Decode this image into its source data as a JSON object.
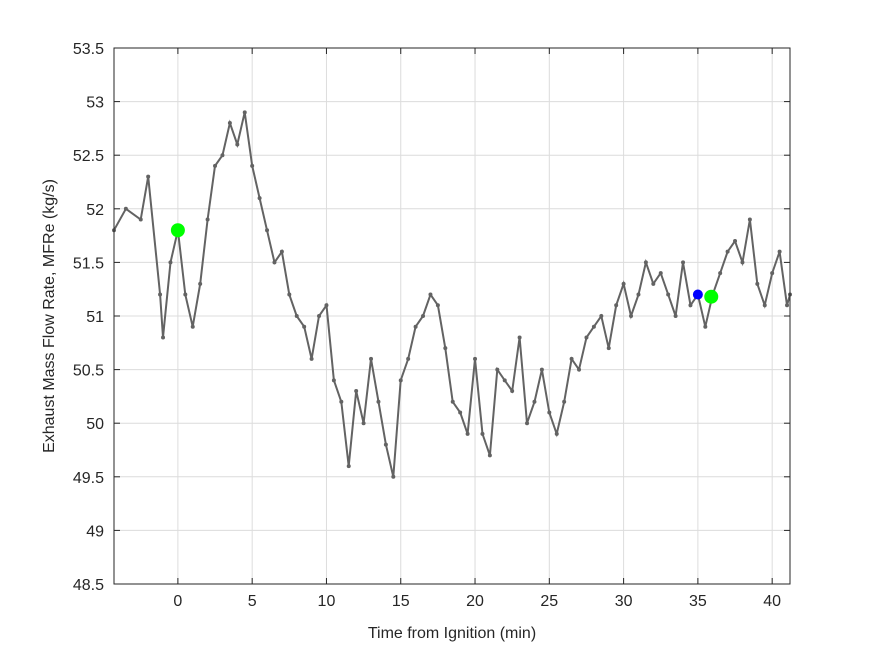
{
  "chart_data": {
    "type": "line",
    "title": "",
    "xlabel": "Time from Ignition (min)",
    "ylabel": "Exhaust Mass Flow Rate, MFRe (kg/s)",
    "xlim": [
      -4.3,
      41.2
    ],
    "ylim": [
      48.5,
      53.5
    ],
    "xticks": [
      0,
      5,
      10,
      15,
      20,
      25,
      30,
      35,
      40
    ],
    "xtick_labels": [
      "0",
      "5",
      "10",
      "15",
      "20",
      "25",
      "30",
      "35",
      "40"
    ],
    "yticks": [
      48.5,
      49,
      49.5,
      50,
      50.5,
      51,
      51.5,
      52,
      52.5,
      53,
      53.5
    ],
    "ytick_labels": [
      "48.5",
      "49",
      "49.5",
      "50",
      "50.5",
      "51",
      "51.5",
      "52",
      "52.5",
      "53",
      "53.5"
    ],
    "grid": true,
    "legend": "none",
    "series": [
      {
        "color": "#636363",
        "marker": "dot",
        "x": [
          -4.3,
          -3.5,
          -2.5,
          -2.0,
          -1.2,
          -1.0,
          -0.5,
          0.0,
          0.5,
          1.0,
          1.5,
          2.0,
          2.5,
          3.0,
          3.5,
          4.0,
          4.5,
          5.0,
          5.5,
          6.0,
          6.5,
          7.0,
          7.5,
          8.0,
          8.5,
          9.0,
          9.5,
          10.0,
          10.5,
          11.0,
          11.5,
          12.0,
          12.5,
          13.0,
          13.5,
          14.0,
          14.5,
          15.0,
          15.5,
          16.0,
          16.5,
          17.0,
          17.5,
          18.0,
          18.5,
          19.0,
          19.5,
          20.0,
          20.5,
          21.0,
          21.5,
          22.0,
          22.5,
          23.0,
          23.5,
          24.0,
          24.5,
          25.0,
          25.5,
          26.0,
          26.5,
          27.0,
          27.5,
          28.0,
          28.5,
          29.0,
          29.5,
          30.0,
          30.5,
          31.0,
          31.5,
          32.0,
          32.5,
          33.0,
          33.5,
          34.0,
          34.5,
          35.0,
          35.5,
          36.0,
          36.5,
          37.0,
          37.5,
          38.0,
          38.5,
          39.0,
          39.5,
          40.0,
          40.5,
          41.0,
          41.2
        ],
        "y": [
          51.8,
          52.0,
          51.9,
          52.3,
          51.2,
          50.8,
          51.5,
          51.8,
          51.2,
          50.9,
          51.3,
          51.9,
          52.4,
          52.5,
          52.8,
          52.6,
          52.9,
          52.4,
          52.1,
          51.8,
          51.5,
          51.6,
          51.2,
          51.0,
          50.9,
          50.6,
          51.0,
          51.1,
          50.4,
          50.2,
          49.6,
          50.3,
          50.0,
          50.6,
          50.2,
          49.8,
          49.5,
          50.4,
          50.6,
          50.9,
          51.0,
          51.2,
          51.1,
          50.7,
          50.2,
          50.1,
          49.9,
          50.6,
          49.9,
          49.7,
          50.5,
          50.4,
          50.3,
          50.8,
          50.0,
          50.2,
          50.5,
          50.1,
          49.9,
          50.2,
          50.6,
          50.5,
          50.8,
          50.9,
          51.0,
          50.7,
          51.1,
          51.3,
          51.0,
          51.2,
          51.5,
          51.3,
          51.4,
          51.2,
          51.0,
          51.5,
          51.1,
          51.2,
          50.9,
          51.2,
          51.4,
          51.6,
          51.7,
          51.5,
          51.9,
          51.3,
          51.1,
          51.4,
          51.6,
          51.1,
          51.2
        ]
      },
      {
        "color": "#00ff00",
        "marker": "circle",
        "x": [
          0.0,
          35.9
        ],
        "y": [
          51.8,
          51.18
        ]
      },
      {
        "color": "#0000ff",
        "marker": "circle",
        "x": [
          35.0
        ],
        "y": [
          51.2
        ]
      }
    ]
  }
}
